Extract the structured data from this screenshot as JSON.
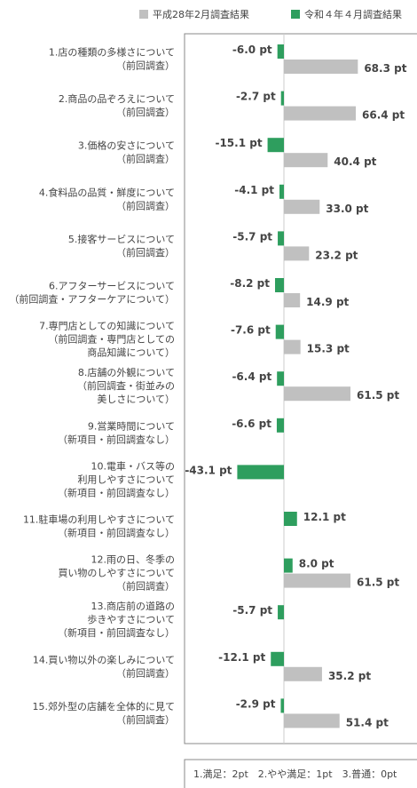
{
  "chart_data": {
    "type": "bar",
    "categories": [
      [
        "1.店の種類の多様さについて",
        "（前回調査）"
      ],
      [
        "2.商品の品ぞろえについて",
        "（前回調査）"
      ],
      [
        "3.価格の安さについて",
        "（前回調査）"
      ],
      [
        "4.食料品の品質・鮮度について",
        "（前回調査）"
      ],
      [
        "5.接客サービスについて",
        "（前回調査）"
      ],
      [
        "6.アフターサービスについて",
        "（前回調査・アフターケアについて）"
      ],
      [
        "7.専門店としての知識について",
        "（前回調査・専門店としての",
        "商品知識について）"
      ],
      [
        "8.店舗の外観について",
        "（前回調査・街並みの",
        "美しさについて）"
      ],
      [
        "9.営業時間について",
        "（新項目・前回調査なし）"
      ],
      [
        "10.電車・バス等の",
        "利用しやすさについて",
        "（新項目・前回調査なし）"
      ],
      [
        "11.駐車場の利用しやすさについて",
        "（新項目・前回調査なし）"
      ],
      [
        "12.雨の日、冬季の",
        "買い物のしやすさについて",
        "（前回調査）"
      ],
      [
        "13.商店前の道路の",
        "歩きやすさについて",
        "（新項目・前回調査なし）"
      ],
      [
        "14.買い物以外の楽しみについて",
        "（前回調査）"
      ],
      [
        "15.郊外型の店舗を全体的に見て",
        "（前回調査）"
      ]
    ],
    "series": [
      {
        "name": "平成28年2月調査結果",
        "color": "#c0c0c0",
        "values": [
          68.3,
          66.4,
          40.4,
          33.0,
          23.2,
          14.9,
          15.3,
          61.5,
          null,
          null,
          null,
          61.5,
          null,
          35.2,
          51.4
        ],
        "value_labels": [
          "68.3 pt",
          "66.4 pt",
          "40.4 pt",
          "33.0 pt",
          "23.2 pt",
          "14.9 pt",
          "15.3 pt",
          "61.5 pt",
          null,
          null,
          null,
          "61.5 pt",
          null,
          "35.2 pt",
          "51.4 pt"
        ]
      },
      {
        "name": "令和４年４月調査結果",
        "color": "#2e9e5e",
        "values": [
          -6.0,
          -2.7,
          -15.1,
          -4.1,
          -5.7,
          -8.2,
          -7.6,
          -6.4,
          -6.6,
          -43.1,
          12.1,
          8.0,
          -5.7,
          -12.1,
          -2.9
        ],
        "value_labels": [
          "-6.0 pt",
          "-2.7 pt",
          "-15.1 pt",
          "-4.1 pt",
          "-5.7 pt",
          "-8.2 pt",
          "-7.6 pt",
          "-6.4 pt",
          "-6.6 pt",
          "-43.1 pt",
          "12.1 pt",
          "8.0 pt",
          "-5.7 pt",
          "-12.1 pt",
          "-2.9 pt"
        ]
      }
    ],
    "footnote": "1.満足：2pt　2.やや満足：1pt　3.普通：0pt"
  }
}
